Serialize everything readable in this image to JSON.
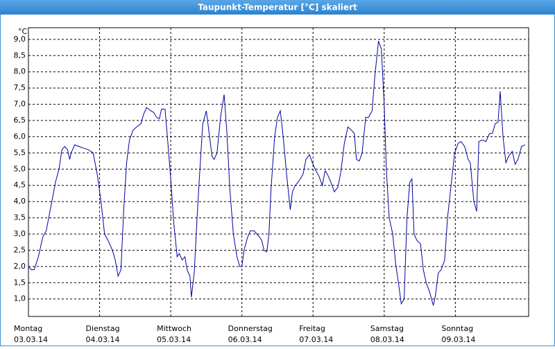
{
  "chart_data": {
    "type": "line",
    "title": "Taupunkt-Temperatur [°C] skaliert",
    "y_label": "°C",
    "xlim": [
      0,
      7.03
    ],
    "ylim": [
      0.46,
      9.36
    ],
    "grid": true,
    "xticks": [
      {
        "value": 0,
        "label": "Montag",
        "sublabel": "03.03.14"
      },
      {
        "value": 1,
        "label": "Dienstag",
        "sublabel": "04.03.14"
      },
      {
        "value": 2,
        "label": "Mittwoch",
        "sublabel": "05.03.14"
      },
      {
        "value": 3,
        "label": "Donnerstag",
        "sublabel": "06.03.14"
      },
      {
        "value": 4,
        "label": "Freitag",
        "sublabel": "07.03.14"
      },
      {
        "value": 5,
        "label": "Samstag",
        "sublabel": "08.03.14"
      },
      {
        "value": 6,
        "label": "Sonntag",
        "sublabel": "09.03.14"
      }
    ],
    "yticks": [
      {
        "value": 1.0,
        "label": "1,0"
      },
      {
        "value": 1.5,
        "label": "1,5"
      },
      {
        "value": 2.0,
        "label": "2,0"
      },
      {
        "value": 2.5,
        "label": "2,5"
      },
      {
        "value": 3.0,
        "label": "3,0"
      },
      {
        "value": 3.5,
        "label": "3,5"
      },
      {
        "value": 4.0,
        "label": "4,0"
      },
      {
        "value": 4.5,
        "label": "4,5"
      },
      {
        "value": 5.0,
        "label": "5,0"
      },
      {
        "value": 5.5,
        "label": "5,5"
      },
      {
        "value": 6.0,
        "label": "6,0"
      },
      {
        "value": 6.5,
        "label": "6,5"
      },
      {
        "value": 7.0,
        "label": "7,0"
      },
      {
        "value": 7.5,
        "label": "7,5"
      },
      {
        "value": 8.0,
        "label": "8,0"
      },
      {
        "value": 8.5,
        "label": "8,5"
      },
      {
        "value": 9.0,
        "label": "9,0"
      }
    ],
    "series": [
      {
        "color": "#0000a0",
        "x": [
          0,
          0.04,
          0.08,
          0.14,
          0.2,
          0.25,
          0.32,
          0.38,
          0.43,
          0.47,
          0.51,
          0.55,
          0.58,
          0.6,
          0.65,
          0.71,
          0.77,
          0.84,
          0.91,
          0.97,
          1.02,
          1.07,
          1.12,
          1.18,
          1.22,
          1.26,
          1.3,
          1.34,
          1.38,
          1.42,
          1.47,
          1.52,
          1.58,
          1.62,
          1.66,
          1.72,
          1.76,
          1.8,
          1.84,
          1.87,
          1.92,
          1.96,
          2.0,
          2.04,
          2.09,
          2.12,
          2.16,
          2.2,
          2.23,
          2.27,
          2.29,
          2.33,
          2.37,
          2.41,
          2.45,
          2.5,
          2.54,
          2.58,
          2.61,
          2.65,
          2.7,
          2.75,
          2.79,
          2.83,
          2.88,
          2.93,
          2.97,
          3.0,
          3.03,
          3.08,
          3.12,
          3.17,
          3.21,
          3.25,
          3.28,
          3.31,
          3.35,
          3.38,
          3.41,
          3.46,
          3.5,
          3.54,
          3.58,
          3.63,
          3.68,
          3.71,
          3.75,
          3.79,
          3.82,
          3.86,
          3.9,
          3.95,
          3.99,
          4.04,
          4.08,
          4.13,
          4.17,
          4.2,
          4.25,
          4.3,
          4.35,
          4.39,
          4.44,
          4.49,
          4.54,
          4.58,
          4.61,
          4.65,
          4.69,
          4.74,
          4.78,
          4.83,
          4.87,
          4.92,
          4.96,
          5.0,
          5.03,
          5.07,
          5.12,
          5.16,
          5.2,
          5.24,
          5.28,
          5.32,
          5.36,
          5.39,
          5.42,
          5.46,
          5.51,
          5.55,
          5.59,
          5.64,
          5.69,
          5.72,
          5.76,
          5.8,
          5.85,
          5.89,
          5.94,
          5.99,
          6.04,
          6.08,
          6.13,
          6.18,
          6.21,
          6.26,
          6.3,
          6.33,
          6.38,
          6.43,
          6.48,
          6.52,
          6.56,
          6.6,
          6.63,
          6.67,
          6.71,
          6.75,
          6.8,
          6.84,
          6.88,
          6.93,
          6.98
        ],
        "values": [
          2.0,
          1.9,
          1.9,
          2.3,
          2.9,
          3.1,
          3.9,
          4.6,
          5.0,
          5.6,
          5.7,
          5.6,
          5.3,
          5.5,
          5.75,
          5.7,
          5.65,
          5.6,
          5.5,
          4.8,
          4.0,
          3.0,
          2.8,
          2.5,
          2.2,
          1.7,
          1.9,
          3.8,
          5.2,
          5.9,
          6.2,
          6.3,
          6.4,
          6.7,
          6.9,
          6.8,
          6.75,
          6.6,
          6.55,
          6.85,
          6.85,
          5.8,
          4.7,
          3.4,
          2.3,
          2.4,
          2.2,
          2.3,
          1.9,
          1.7,
          1.05,
          1.8,
          3.5,
          5.0,
          6.4,
          6.8,
          6.1,
          5.4,
          5.3,
          5.5,
          6.6,
          7.3,
          6.1,
          4.4,
          3.0,
          2.3,
          2.0,
          2.0,
          2.5,
          2.9,
          3.1,
          3.1,
          3.0,
          2.9,
          2.8,
          2.5,
          2.45,
          3.0,
          4.4,
          6.0,
          6.6,
          6.8,
          6.0,
          4.8,
          3.75,
          4.3,
          4.5,
          4.6,
          4.7,
          4.85,
          5.3,
          5.45,
          5.2,
          4.95,
          4.8,
          4.5,
          4.95,
          4.85,
          4.6,
          4.3,
          4.45,
          4.9,
          5.8,
          6.3,
          6.2,
          6.1,
          5.3,
          5.25,
          5.5,
          6.6,
          6.6,
          6.8,
          7.9,
          8.95,
          8.7,
          7.0,
          5.0,
          3.5,
          3.0,
          2.1,
          1.5,
          0.85,
          1.0,
          3.5,
          4.6,
          4.7,
          3.0,
          2.8,
          2.7,
          1.9,
          1.5,
          1.2,
          0.8,
          1.1,
          1.8,
          1.9,
          2.2,
          3.5,
          4.5,
          5.5,
          5.8,
          5.85,
          5.7,
          5.3,
          5.2,
          4.0,
          3.7,
          5.85,
          5.9,
          5.85,
          6.1,
          6.1,
          6.4,
          6.45,
          7.4,
          6.0,
          5.2,
          5.4,
          5.55,
          5.15,
          5.3,
          5.7,
          5.75
        ]
      }
    ]
  }
}
